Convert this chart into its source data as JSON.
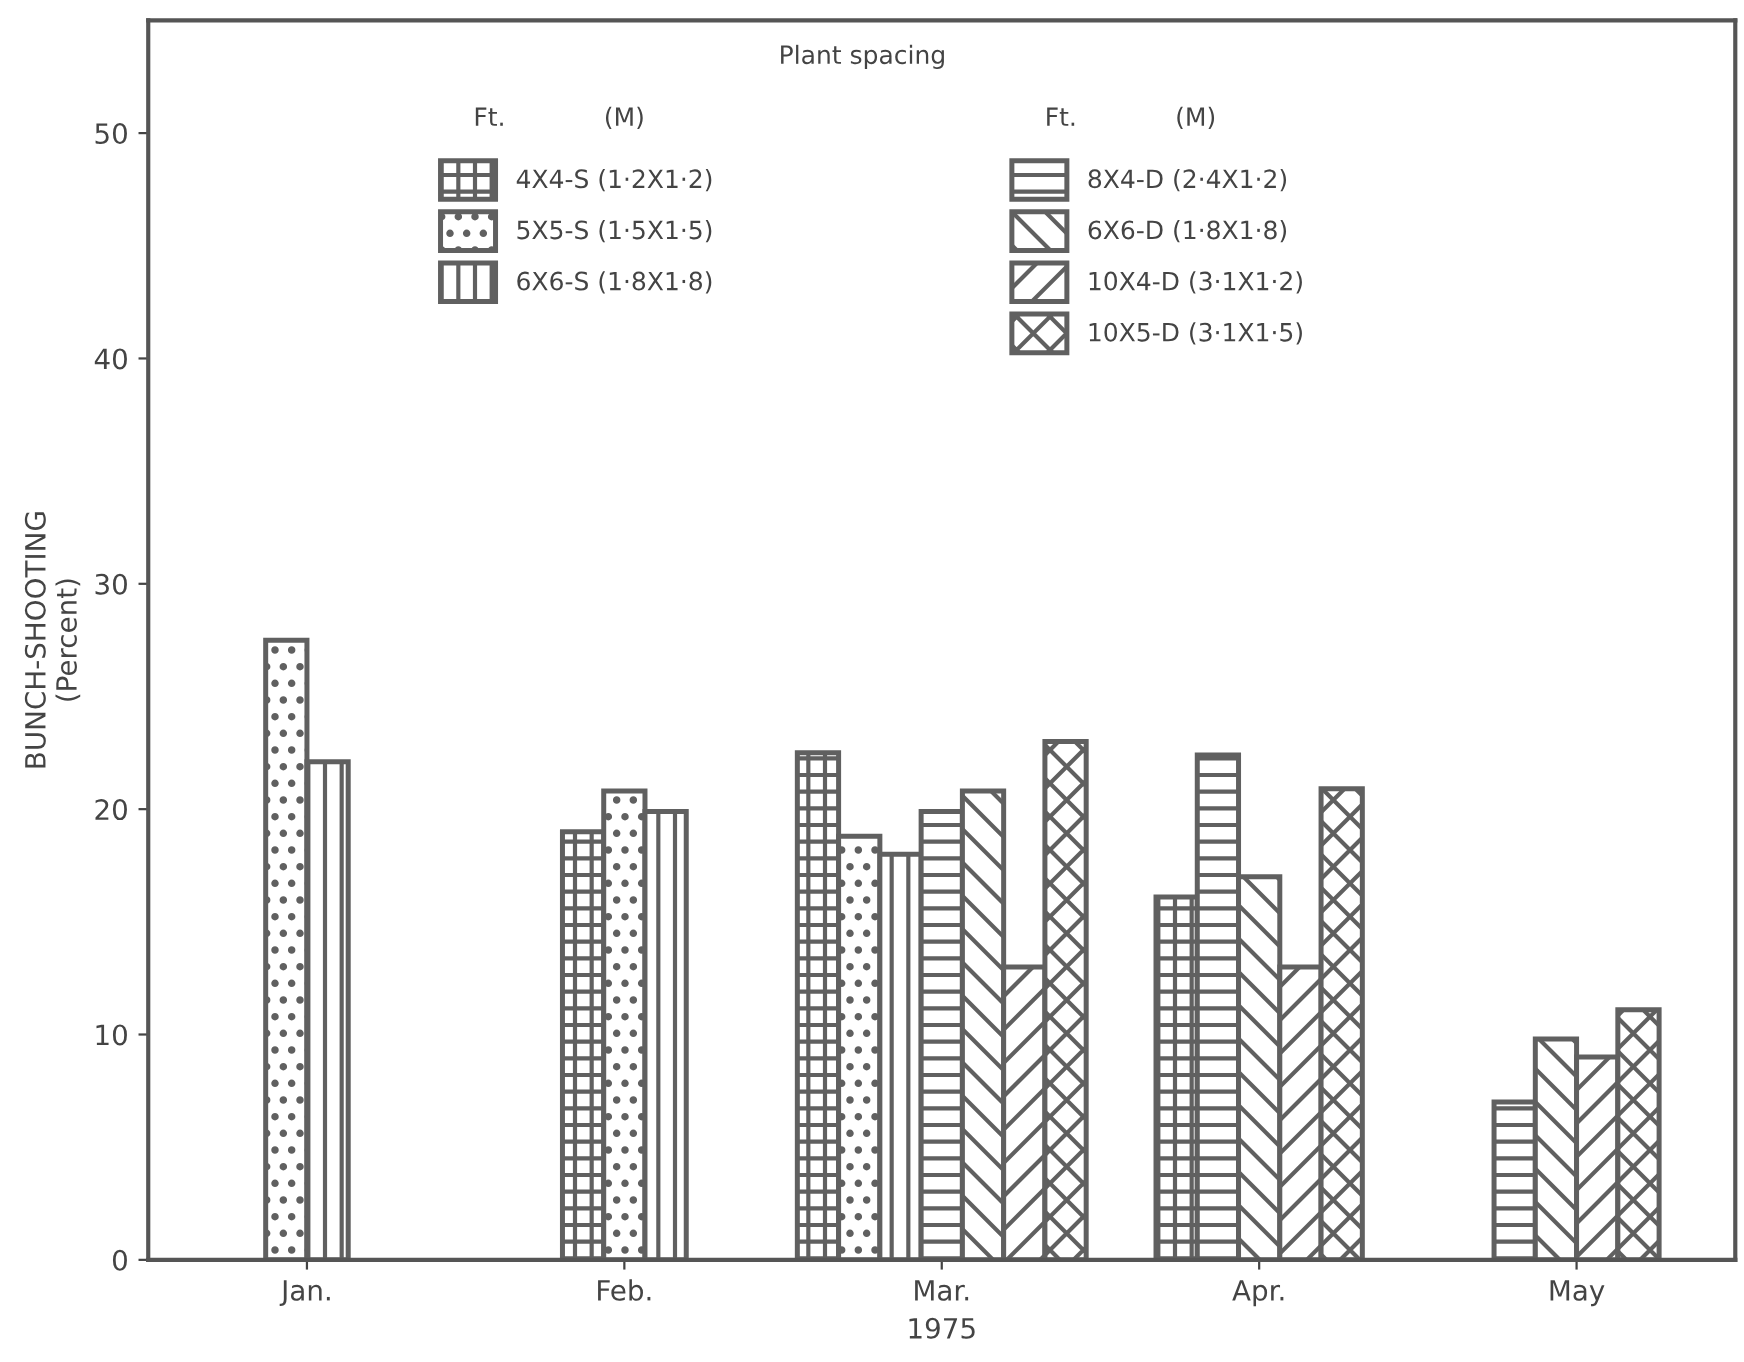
{
  "chart_data": {
    "type": "bar",
    "xlabel": "1975",
    "ylabel": "BUNCH-SHOOTING\n(Percent)",
    "legend_title": "Plant spacing",
    "legend": "top",
    "grid": false,
    "categories": [
      "Jan.",
      "Feb.",
      "Mar.",
      "Apr.",
      "May"
    ],
    "ylim": [
      0,
      55
    ],
    "yticks": [
      0,
      10,
      20,
      30,
      40,
      50
    ],
    "annotations": [
      "Ft.",
      "(M)",
      "Ft.",
      "(M)"
    ],
    "series": [
      {
        "name": "4X4-S (1·2X1·2)",
        "color": "#606060",
        "values": [
          null,
          19.0,
          22.5,
          16.1,
          null
        ]
      },
      {
        "name": "5X5-S (1·5X1·5)",
        "color": "#606060",
        "values": [
          27.5,
          20.8,
          18.8,
          null,
          null
        ]
      },
      {
        "name": "6X6-S (1·8X1·8)",
        "color": "#606060",
        "values": [
          22.1,
          19.9,
          18.0,
          null,
          null
        ]
      },
      {
        "name": "8X4-D (2·4X1·2)",
        "color": "#606060",
        "values": [
          null,
          null,
          19.9,
          22.4,
          7.0
        ]
      },
      {
        "name": "6X6-D (1·8X1·8)",
        "color": "#606060",
        "values": [
          null,
          null,
          20.8,
          17.0,
          9.8
        ]
      },
      {
        "name": "10X4-D (3·1X1·2)",
        "color": "#606060",
        "values": [
          null,
          null,
          13.0,
          13.0,
          9.0
        ]
      },
      {
        "name": "10X5-D (3·1X1·5)",
        "color": "#606060",
        "values": [
          null,
          null,
          23.0,
          20.9,
          11.1
        ]
      }
    ]
  }
}
